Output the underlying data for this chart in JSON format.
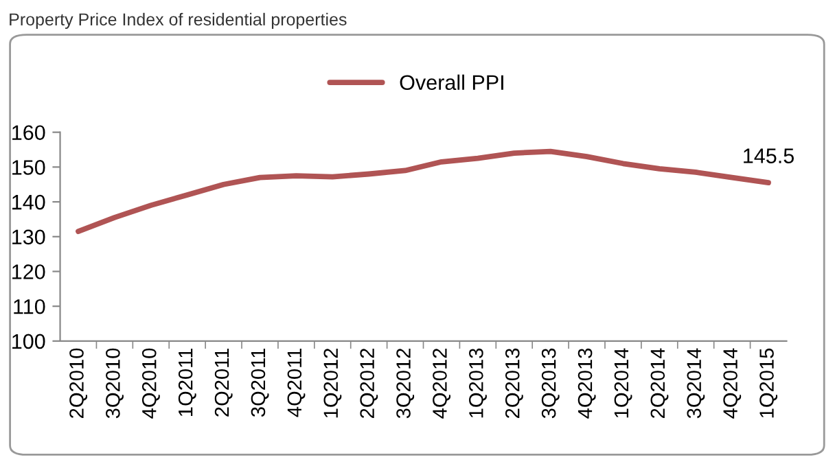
{
  "chart_data": {
    "type": "line",
    "title": "Property Price Index of residential properties",
    "categories": [
      "2Q2010",
      "3Q2010",
      "4Q2010",
      "1Q2011",
      "2Q2011",
      "3Q2011",
      "4Q2011",
      "1Q2012",
      "2Q2012",
      "3Q2012",
      "4Q2012",
      "1Q2013",
      "2Q2013",
      "3Q2013",
      "4Q2013",
      "1Q2014",
      "2Q2014",
      "3Q2014",
      "4Q2014",
      "1Q2015"
    ],
    "series": [
      {
        "name": "Overall PPI",
        "color": "#b05454",
        "values": [
          131.5,
          135.5,
          139,
          142,
          145,
          147,
          147.5,
          147.2,
          148,
          149,
          151.5,
          152.5,
          154,
          154.5,
          153,
          151,
          149.5,
          148.5,
          147,
          145.5
        ],
        "value_labels": [
          null,
          null,
          null,
          null,
          null,
          null,
          null,
          null,
          null,
          null,
          null,
          null,
          null,
          null,
          null,
          null,
          null,
          null,
          null,
          "145.5"
        ]
      }
    ],
    "ylim": [
      100,
      160
    ],
    "yticks": [
      100,
      110,
      120,
      130,
      140,
      150,
      160
    ],
    "grid": false,
    "legend": "top",
    "marker": "none",
    "line_style": "solid"
  }
}
